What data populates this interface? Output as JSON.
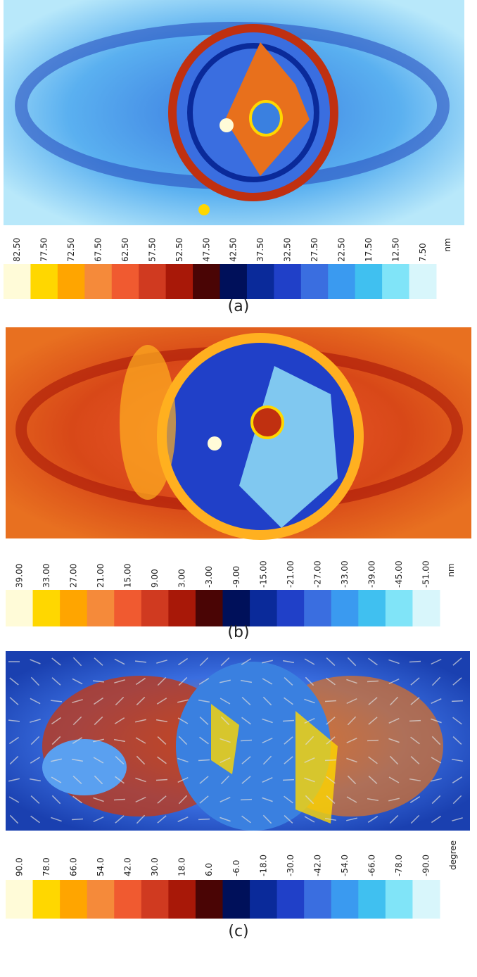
{
  "panels": [
    {
      "label": "(a)",
      "unit": "nm",
      "ticks": [
        "82.50",
        "77.50",
        "72.50",
        "67.50",
        "62.50",
        "57.50",
        "52.50",
        "47.50",
        "42.50",
        "37.50",
        "32.50",
        "27.50",
        "22.50",
        "17.50",
        "12.50",
        "7.50"
      ]
    },
    {
      "label": "(b)",
      "unit": "nm",
      "ticks": [
        "39.00",
        "33.00",
        "27.00",
        "21.00",
        "15.00",
        "9.00",
        "3.00",
        "-3.00",
        "-9.00",
        "-15.00",
        "-21.00",
        "-27.00",
        "-33.00",
        "-39.00",
        "-45.00",
        "-51.00"
      ]
    },
    {
      "label": "(c)",
      "unit": "degree",
      "ticks": [
        "90.0",
        "78.0",
        "66.0",
        "54.0",
        "42.0",
        "30.0",
        "18.0",
        "6.0",
        "-6.0",
        "-18.0",
        "-30.0",
        "-42.0",
        "-54.0",
        "-66.0",
        "-78.0",
        "-90.0"
      ]
    }
  ]
}
